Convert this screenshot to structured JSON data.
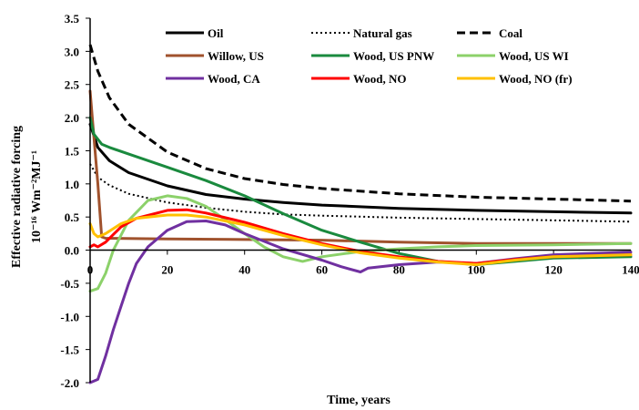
{
  "chart_data": {
    "type": "line",
    "title": "",
    "xlabel": "Time, years",
    "ylabel_line1": "Effective radiative forcing",
    "ylabel_line2": "10⁻¹⁶ Wm⁻²MJ⁻¹",
    "xlim": [
      0,
      140
    ],
    "ylim": [
      -2.0,
      3.5
    ],
    "x_ticks": [
      0,
      20,
      40,
      60,
      80,
      100,
      120,
      140
    ],
    "x_tick_labels": [
      "0",
      "20",
      "40",
      "60",
      "80",
      "100",
      "120",
      "140"
    ],
    "y_ticks": [
      -2.0,
      -1.5,
      -1.0,
      -0.5,
      0.0,
      0.5,
      1.0,
      1.5,
      2.0,
      2.5,
      3.0,
      3.5
    ],
    "y_tick_labels": [
      "-2.0",
      "-1.5",
      "-1.0",
      "-0.5",
      "0.0",
      "0.5",
      "1.0",
      "1.5",
      "2.0",
      "2.5",
      "3.0",
      "3.5"
    ],
    "grid": false,
    "legend_position": "top",
    "series": [
      {
        "name": "Oil",
        "color": "#000000",
        "dash": "solid",
        "width": 3,
        "points": [
          [
            0,
            1.9
          ],
          [
            2,
            1.55
          ],
          [
            5,
            1.35
          ],
          [
            10,
            1.17
          ],
          [
            20,
            0.97
          ],
          [
            30,
            0.84
          ],
          [
            40,
            0.77
          ],
          [
            50,
            0.72
          ],
          [
            60,
            0.68
          ],
          [
            80,
            0.63
          ],
          [
            100,
            0.6
          ],
          [
            120,
            0.58
          ],
          [
            140,
            0.56
          ]
        ]
      },
      {
        "name": "Natural gas",
        "color": "#000000",
        "dash": "dotted",
        "width": 2,
        "points": [
          [
            0,
            1.3
          ],
          [
            2,
            1.1
          ],
          [
            5,
            0.98
          ],
          [
            10,
            0.85
          ],
          [
            20,
            0.72
          ],
          [
            30,
            0.64
          ],
          [
            40,
            0.58
          ],
          [
            50,
            0.54
          ],
          [
            60,
            0.52
          ],
          [
            80,
            0.49
          ],
          [
            100,
            0.47
          ],
          [
            120,
            0.45
          ],
          [
            140,
            0.43
          ]
        ]
      },
      {
        "name": "Coal",
        "color": "#000000",
        "dash": "dashed",
        "width": 3,
        "points": [
          [
            0,
            3.1
          ],
          [
            2,
            2.7
          ],
          [
            5,
            2.3
          ],
          [
            10,
            1.9
          ],
          [
            20,
            1.48
          ],
          [
            30,
            1.23
          ],
          [
            40,
            1.08
          ],
          [
            50,
            0.99
          ],
          [
            60,
            0.93
          ],
          [
            80,
            0.85
          ],
          [
            100,
            0.8
          ],
          [
            120,
            0.77
          ],
          [
            140,
            0.74
          ]
        ]
      },
      {
        "name": "Willow, US",
        "color": "#a0522d",
        "dash": "solid",
        "width": 3,
        "points": [
          [
            0,
            2.4
          ],
          [
            1,
            1.7
          ],
          [
            2,
            1.0
          ],
          [
            3,
            0.2
          ],
          [
            4,
            0.18
          ],
          [
            20,
            0.17
          ],
          [
            40,
            0.16
          ],
          [
            60,
            0.15
          ],
          [
            80,
            0.12
          ],
          [
            100,
            0.1
          ],
          [
            120,
            0.1
          ],
          [
            140,
            0.1
          ]
        ]
      },
      {
        "name": "Wood, US PNW",
        "color": "#1a8a3e",
        "dash": "solid",
        "width": 3,
        "points": [
          [
            0,
            2.0
          ],
          [
            1,
            1.75
          ],
          [
            3,
            1.6
          ],
          [
            5,
            1.55
          ],
          [
            10,
            1.45
          ],
          [
            20,
            1.25
          ],
          [
            30,
            1.05
          ],
          [
            40,
            0.82
          ],
          [
            50,
            0.55
          ],
          [
            60,
            0.3
          ],
          [
            70,
            0.12
          ],
          [
            80,
            -0.05
          ],
          [
            90,
            -0.17
          ],
          [
            100,
            -0.22
          ],
          [
            110,
            -0.17
          ],
          [
            120,
            -0.12
          ],
          [
            140,
            -0.1
          ]
        ]
      },
      {
        "name": "Wood, US WI",
        "color": "#8cd16a",
        "dash": "solid",
        "width": 3,
        "points": [
          [
            0,
            -0.62
          ],
          [
            2,
            -0.58
          ],
          [
            4,
            -0.35
          ],
          [
            6,
            0.0
          ],
          [
            10,
            0.45
          ],
          [
            15,
            0.75
          ],
          [
            20,
            0.82
          ],
          [
            25,
            0.78
          ],
          [
            30,
            0.66
          ],
          [
            35,
            0.46
          ],
          [
            40,
            0.25
          ],
          [
            45,
            0.05
          ],
          [
            50,
            -0.1
          ],
          [
            55,
            -0.17
          ],
          [
            60,
            -0.1
          ],
          [
            70,
            -0.02
          ],
          [
            80,
            0.02
          ],
          [
            90,
            0.05
          ],
          [
            100,
            0.07
          ],
          [
            120,
            0.08
          ],
          [
            140,
            0.1
          ]
        ]
      },
      {
        "name": "Wood, CA",
        "color": "#7030a0",
        "dash": "solid",
        "width": 3,
        "points": [
          [
            0,
            -2.0
          ],
          [
            2,
            -1.95
          ],
          [
            4,
            -1.6
          ],
          [
            6,
            -1.2
          ],
          [
            8,
            -0.85
          ],
          [
            10,
            -0.5
          ],
          [
            12,
            -0.2
          ],
          [
            15,
            0.05
          ],
          [
            20,
            0.3
          ],
          [
            25,
            0.43
          ],
          [
            30,
            0.44
          ],
          [
            35,
            0.38
          ],
          [
            40,
            0.25
          ],
          [
            50,
            0.02
          ],
          [
            60,
            -0.15
          ],
          [
            65,
            -0.25
          ],
          [
            70,
            -0.33
          ],
          [
            72,
            -0.27
          ],
          [
            80,
            -0.22
          ],
          [
            90,
            -0.18
          ],
          [
            100,
            -0.2
          ],
          [
            110,
            -0.13
          ],
          [
            120,
            -0.07
          ],
          [
            140,
            -0.03
          ]
        ]
      },
      {
        "name": "Wood, NO",
        "color": "#ff0000",
        "dash": "solid",
        "width": 3,
        "points": [
          [
            0,
            0.05
          ],
          [
            1,
            0.08
          ],
          [
            2,
            0.05
          ],
          [
            4,
            0.12
          ],
          [
            8,
            0.35
          ],
          [
            12,
            0.48
          ],
          [
            20,
            0.6
          ],
          [
            25,
            0.61
          ],
          [
            30,
            0.56
          ],
          [
            40,
            0.42
          ],
          [
            50,
            0.25
          ],
          [
            60,
            0.1
          ],
          [
            70,
            -0.02
          ],
          [
            80,
            -0.1
          ],
          [
            90,
            -0.17
          ],
          [
            100,
            -0.2
          ],
          [
            110,
            -0.14
          ],
          [
            120,
            -0.1
          ],
          [
            140,
            -0.07
          ]
        ]
      },
      {
        "name": "Wood, NO (fr)",
        "color": "#ffc000",
        "dash": "solid",
        "width": 3,
        "points": [
          [
            0,
            0.4
          ],
          [
            1,
            0.25
          ],
          [
            2,
            0.2
          ],
          [
            4,
            0.25
          ],
          [
            8,
            0.4
          ],
          [
            12,
            0.48
          ],
          [
            20,
            0.53
          ],
          [
            25,
            0.53
          ],
          [
            30,
            0.5
          ],
          [
            40,
            0.38
          ],
          [
            50,
            0.22
          ],
          [
            60,
            0.08
          ],
          [
            70,
            -0.04
          ],
          [
            80,
            -0.12
          ],
          [
            90,
            -0.18
          ],
          [
            100,
            -0.22
          ],
          [
            110,
            -0.15
          ],
          [
            120,
            -0.1
          ],
          [
            140,
            -0.07
          ]
        ]
      }
    ]
  }
}
